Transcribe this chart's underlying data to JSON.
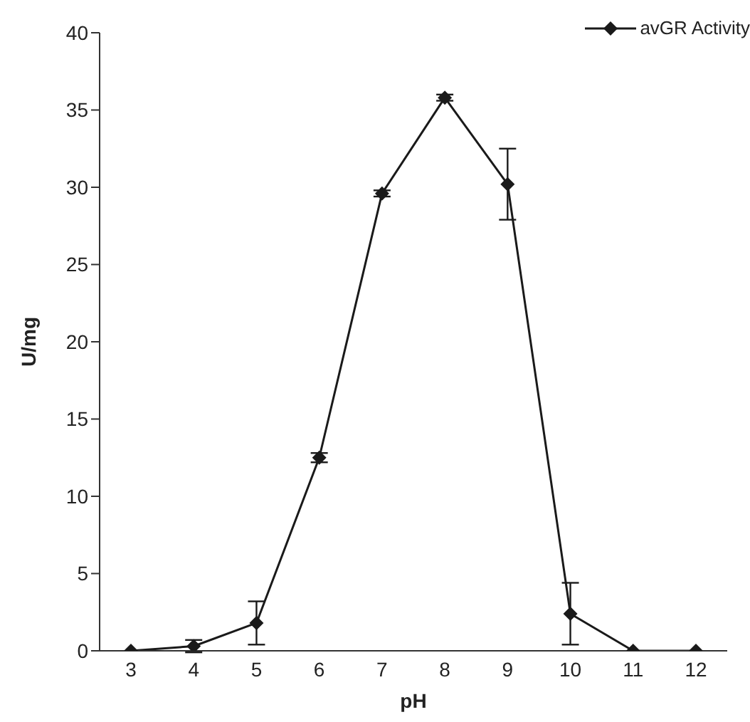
{
  "chart_data": {
    "type": "line",
    "xlabel": "pH",
    "ylabel": "U/mg",
    "categories": [
      "3",
      "4",
      "5",
      "6",
      "7",
      "8",
      "9",
      "10",
      "11",
      "12"
    ],
    "series": [
      {
        "name": "avGR Activity",
        "color": "#1a1a1a",
        "values": [
          0,
          0.3,
          1.8,
          12.5,
          29.6,
          35.8,
          30.2,
          2.4,
          0,
          0
        ],
        "errors": [
          null,
          0.4,
          1.4,
          0.3,
          0.2,
          0.2,
          2.3,
          2.0,
          null,
          null
        ]
      }
    ],
    "ylim": [
      0,
      40
    ],
    "yticks": [
      0,
      5,
      10,
      15,
      20,
      25,
      30,
      35,
      40
    ],
    "grid": false,
    "legend": "top right",
    "marker": "diamond",
    "line_style": "solid"
  }
}
